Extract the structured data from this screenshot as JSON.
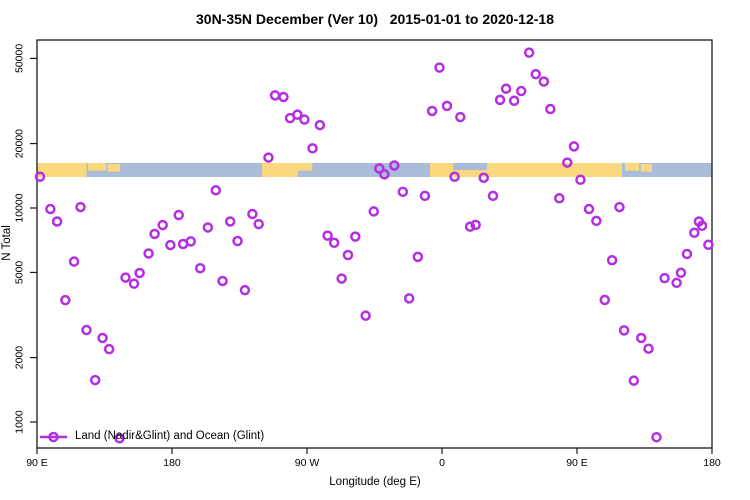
{
  "title": "30N-35N December (Ver 10)   2015-01-01 to 2020-12-18",
  "colors": {
    "marker": "#B42EE2",
    "land": "#FAD87E",
    "ocean": "#A9BCD9",
    "axis": "#1a1a1a"
  },
  "legend": {
    "label": "Land (Nadir&Glint) and Ocean (Glint)",
    "marker": "open-circle-on-line"
  },
  "chart_data": {
    "type": "scatter",
    "title": "30N-35N December (Ver 10)   2015-01-01 to 2020-12-18",
    "xlabel": "Longitude (deg E)",
    "ylabel": "N Total",
    "x_axis": {
      "ticks_deg": [
        90,
        180,
        270,
        360,
        450,
        540
      ],
      "tick_labels": [
        "90 E",
        "180",
        "90 W",
        "0",
        "90 E",
        "180"
      ],
      "range_deg": [
        90,
        540
      ],
      "note": "longitude axis spans 450 deg, wrapping 90E>180>90W>0>90E>180; 90E-180 range plotted twice"
    },
    "y_axis": {
      "scale": "log10",
      "ticks": [
        1000,
        2000,
        5000,
        10000,
        20000,
        50000
      ],
      "tick_labels": [
        "1000",
        "2000",
        "5000",
        "10000",
        "20000",
        "50000"
      ],
      "range": [
        760,
        61000
      ],
      "grid": false
    },
    "legend_position": "bottom-left",
    "series": [
      {
        "name": "Land (Nadir&Glint) and Ocean (Glint)",
        "marker": "open-circle",
        "color": "#B42EE2",
        "points": [
          [
            92,
            14000
          ],
          [
            98.9,
            9890
          ],
          [
            103.4,
            8650
          ],
          [
            108.9,
            3710
          ],
          [
            114.7,
            5620
          ],
          [
            119,
            10100
          ],
          [
            123,
            2690
          ],
          [
            128.8,
            1570
          ],
          [
            133.7,
            2470
          ],
          [
            138.1,
            2190
          ],
          [
            145,
            839
          ],
          [
            149,
            4730
          ],
          [
            154.7,
            4430
          ],
          [
            158.4,
            4970
          ],
          [
            164.4,
            6130
          ],
          [
            168.4,
            7570
          ],
          [
            173.8,
            8320
          ],
          [
            178.9,
            6710
          ],
          [
            184.5,
            9270
          ],
          [
            187.4,
            6790
          ],
          [
            192.5,
            6980
          ],
          [
            198.8,
            5230
          ],
          [
            203.9,
            8110
          ],
          [
            209.2,
            12100
          ],
          [
            213.7,
            4560
          ],
          [
            218.8,
            8650
          ],
          [
            223.7,
            7010
          ],
          [
            228.6,
            4130
          ],
          [
            233.6,
            9370
          ],
          [
            237.8,
            8410
          ],
          [
            244.3,
            17200
          ],
          [
            248.7,
            33600
          ],
          [
            254.3,
            33000
          ],
          [
            258.7,
            26300
          ],
          [
            263.6,
            27300
          ],
          [
            268.3,
            25900
          ],
          [
            273.7,
            19000
          ],
          [
            278.6,
            24400
          ],
          [
            283.7,
            7430
          ],
          [
            288.1,
            6880
          ],
          [
            293.1,
            4680
          ],
          [
            297.3,
            6030
          ],
          [
            302.2,
            7350
          ],
          [
            309.1,
            3140
          ],
          [
            314.5,
            9640
          ],
          [
            318.2,
            15300
          ],
          [
            321.6,
            14350
          ],
          [
            328.2,
            15800
          ],
          [
            333.9,
            11900
          ],
          [
            338.1,
            3780
          ],
          [
            343.9,
            5910
          ],
          [
            348.6,
            11400
          ],
          [
            353.4,
            28400
          ],
          [
            358.3,
            45300
          ],
          [
            363.3,
            30000
          ],
          [
            368.4,
            14000
          ],
          [
            372.2,
            26600
          ],
          [
            378.7,
            8180
          ],
          [
            382.4,
            8340
          ],
          [
            387.8,
            13850
          ],
          [
            394,
            11400
          ],
          [
            398.7,
            32000
          ],
          [
            402.7,
            36100
          ],
          [
            408.1,
            31700
          ],
          [
            412.8,
            35200
          ],
          [
            418.1,
            53200
          ],
          [
            422.5,
            42200
          ],
          [
            427.9,
            39000
          ],
          [
            432.2,
            29000
          ],
          [
            438.2,
            11100
          ],
          [
            443.5,
            16300
          ],
          [
            448,
            19400
          ],
          [
            452.3,
            13550
          ],
          [
            458,
            9890
          ],
          [
            462.9,
            8710
          ],
          [
            468.5,
            3720
          ],
          [
            473.4,
            5700
          ],
          [
            478.3,
            10100
          ],
          [
            481.4,
            2680
          ],
          [
            487.9,
            1560
          ],
          [
            492.8,
            2470
          ],
          [
            497.7,
            2200
          ],
          [
            503,
            849
          ],
          [
            508.4,
            4700
          ],
          [
            516.4,
            4470
          ],
          [
            519.3,
            4980
          ],
          [
            523.3,
            6100
          ],
          [
            528.2,
            7660
          ],
          [
            531.3,
            8650
          ],
          [
            533.4,
            8260
          ],
          [
            537.6,
            6730
          ]
        ]
      }
    ],
    "map_band": {
      "description": "horizontal world-map strip (30N-35N land/ocean) drawn across plot",
      "n_center": 15500,
      "land_color": "#FAD87E",
      "ocean_color": "#A9BCD9",
      "land_segments": [
        {
          "from_deg": 90,
          "to_deg": 123,
          "top": 0,
          "bottom": 1
        },
        {
          "from_deg": 124,
          "to_deg": 136,
          "top": 0,
          "bottom": 0.55
        },
        {
          "from_deg": 137,
          "to_deg": 145.5,
          "top": 0.08,
          "bottom": 0.62
        },
        {
          "from_deg": 240,
          "to_deg": 264,
          "top": 0,
          "bottom": 1
        },
        {
          "from_deg": 264,
          "to_deg": 273.5,
          "top": 0,
          "bottom": 0.55
        },
        {
          "from_deg": 352,
          "to_deg": 480,
          "top": 0,
          "bottom": 1
        },
        {
          "from_deg": 482,
          "to_deg": 491.5,
          "top": 0,
          "bottom": 0.55
        },
        {
          "from_deg": 492.5,
          "to_deg": 500,
          "top": 0.08,
          "bottom": 0.62
        }
      ],
      "ocean_patches": [
        {
          "from_deg": 367.5,
          "to_deg": 390,
          "top": 0,
          "bottom": 0.5
        }
      ]
    }
  }
}
